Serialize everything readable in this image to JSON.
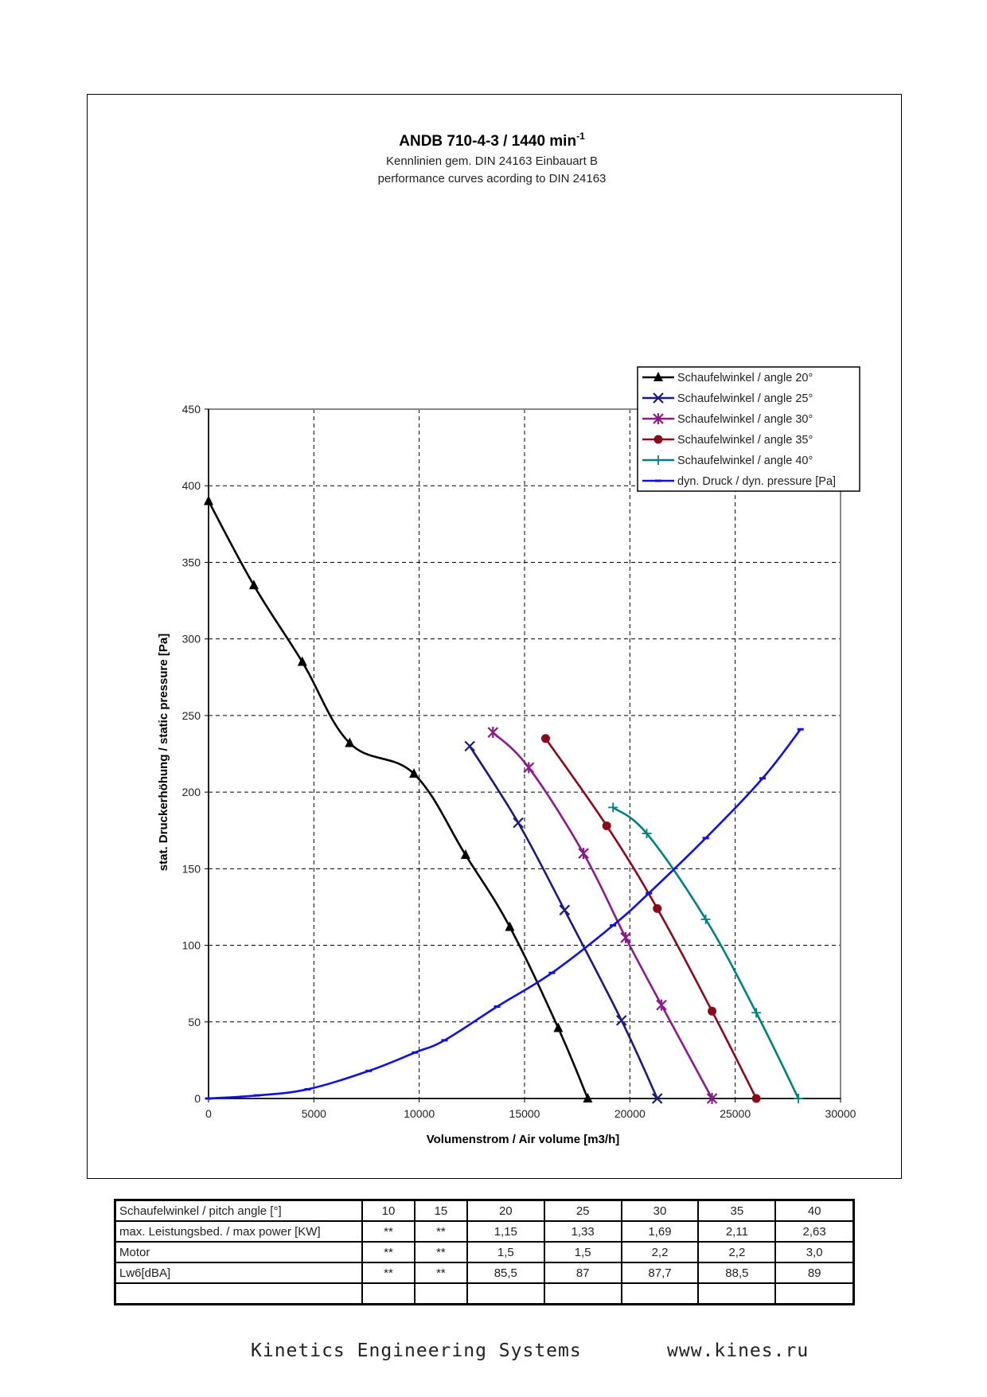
{
  "chart_data": {
    "type": "line",
    "title": "ANDB 710-4-3 / 1440 min",
    "title_superscript": "-1",
    "subtitle_1": "Kennlinien gem. DIN 24163 Einbauart B",
    "subtitle_2": "performance curves acording to DIN 24163",
    "xlabel": "Volumenstrom / Air volume [m3/h]",
    "ylabel": "stat. Druckerhöhung / static pressure [Pa]",
    "xlim": [
      0,
      30000
    ],
    "ylim": [
      0,
      450
    ],
    "xticks": [
      0,
      5000,
      10000,
      15000,
      20000,
      25000,
      30000
    ],
    "yticks": [
      0,
      50,
      100,
      150,
      200,
      250,
      300,
      350,
      400,
      450
    ],
    "grid": true,
    "legend_position": "top-right",
    "series": [
      {
        "name": "Schaufelwinkel / angle 20°",
        "color": "#000000",
        "marker": "triangle",
        "points": [
          [
            0,
            390
          ],
          [
            2150,
            335
          ],
          [
            4450,
            285
          ],
          [
            6700,
            232
          ],
          [
            9750,
            212
          ],
          [
            12200,
            159
          ],
          [
            14300,
            112
          ],
          [
            16600,
            46
          ],
          [
            18000,
            0
          ]
        ]
      },
      {
        "name": "Schaufelwinkel / angle 25°",
        "color": "#1a1a80",
        "marker": "x",
        "points": [
          [
            12400,
            230
          ],
          [
            14700,
            180
          ],
          [
            16900,
            123
          ],
          [
            19600,
            51
          ],
          [
            21300,
            0
          ]
        ]
      },
      {
        "name": "Schaufelwinkel / angle 30°",
        "color": "#8b1a8b",
        "marker": "star",
        "points": [
          [
            13500,
            239
          ],
          [
            15200,
            216
          ],
          [
            17800,
            160
          ],
          [
            19800,
            105
          ],
          [
            21500,
            61
          ],
          [
            23900,
            0
          ]
        ]
      },
      {
        "name": "Schaufelwinkel / angle 35°",
        "color": "#8b0a1a",
        "marker": "circle",
        "points": [
          [
            16000,
            235
          ],
          [
            18900,
            178
          ],
          [
            21300,
            124
          ],
          [
            23900,
            57
          ],
          [
            26000,
            0
          ]
        ]
      },
      {
        "name": "Schaufelwinkel / angle 40°",
        "color": "#008080",
        "marker": "plus",
        "points": [
          [
            19200,
            190
          ],
          [
            20800,
            173
          ],
          [
            23600,
            117
          ],
          [
            26000,
            56
          ],
          [
            28000,
            0
          ]
        ]
      },
      {
        "name": "dyn. Druck / dyn. pressure [Pa]",
        "color": "#1010e0",
        "marker": "dash",
        "points": [
          [
            0,
            0
          ],
          [
            2300,
            2
          ],
          [
            4700,
            6
          ],
          [
            7600,
            18
          ],
          [
            9800,
            30
          ],
          [
            11200,
            38
          ],
          [
            13700,
            60
          ],
          [
            16300,
            82
          ],
          [
            19200,
            113
          ],
          [
            20900,
            134
          ],
          [
            23600,
            170
          ],
          [
            26300,
            209
          ],
          [
            28100,
            241
          ]
        ]
      }
    ]
  },
  "table": {
    "rows": [
      {
        "label": "Schaufelwinkel / pitch angle [°]",
        "values": [
          "10",
          "15",
          "20",
          "25",
          "30",
          "35",
          "40"
        ]
      },
      {
        "label": "max. Leistungsbed. / max power [KW]",
        "values": [
          "**",
          "**",
          "1,15",
          "1,33",
          "1,69",
          "2,11",
          "2,63"
        ]
      },
      {
        "label": "Motor",
        "values": [
          "**",
          "**",
          "1,5",
          "1,5",
          "2,2",
          "2,2",
          "3,0"
        ]
      },
      {
        "label": "Lw6[dBA]",
        "values": [
          "**",
          "**",
          "85,5",
          "87",
          "87,7",
          "88,5",
          "89"
        ]
      },
      {
        "label": "",
        "values": [
          "",
          "",
          "",
          "",
          "",
          "",
          ""
        ]
      }
    ]
  },
  "footer": {
    "company": "Kinetics Engineering Systems",
    "website": "www.kines.ru"
  }
}
